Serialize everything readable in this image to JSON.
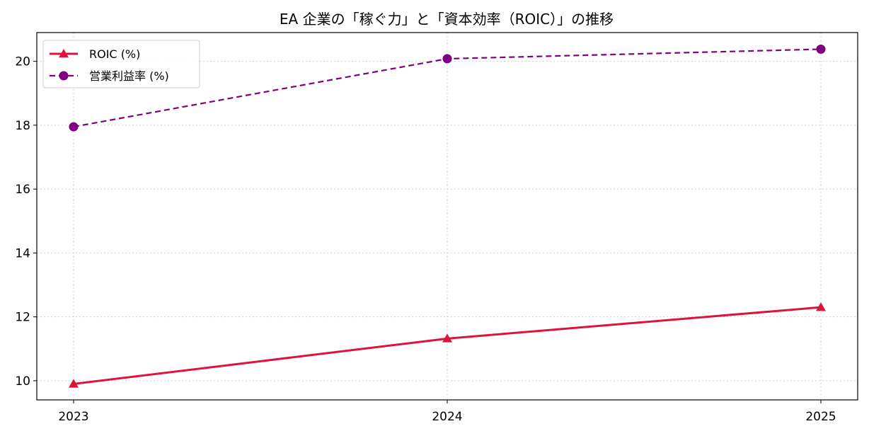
{
  "chart_data": {
    "type": "line",
    "title": "EA 企業の「稼ぐ力」と「資本効率（ROIC）」の推移",
    "xlabel": "",
    "ylabel": "",
    "x": [
      "2023",
      "2024",
      "2025"
    ],
    "ylim": [
      9.4,
      20.9
    ],
    "yticks": [
      10,
      12,
      14,
      16,
      18,
      20
    ],
    "grid": true,
    "legend_position": "upper-left",
    "series": [
      {
        "name": "ROIC (%)",
        "values": [
          9.9,
          11.32,
          12.3
        ],
        "color": "#dc143c",
        "line_style": "solid",
        "marker": "triangle"
      },
      {
        "name": "営業利益率 (%)",
        "values": [
          17.95,
          20.08,
          20.38
        ],
        "color": "#800080",
        "line_style": "dashed",
        "marker": "circle"
      }
    ]
  }
}
